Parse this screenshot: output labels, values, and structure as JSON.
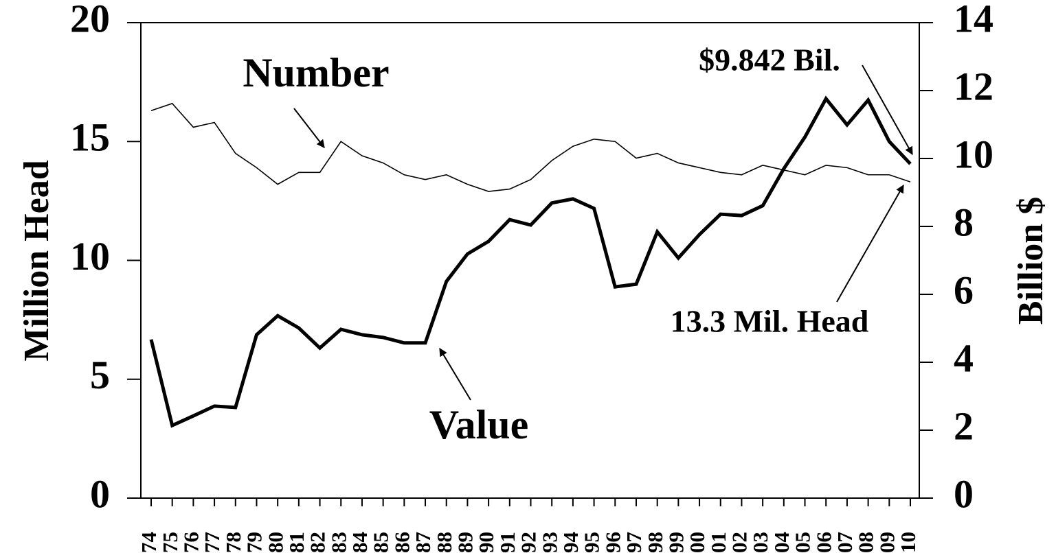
{
  "chart_data": {
    "type": "line",
    "y_label": "Million Head",
    "y2_label": "Billion $",
    "categories": [
      "74",
      "75",
      "76",
      "77",
      "78",
      "79",
      "80",
      "81",
      "82",
      "83",
      "84",
      "85",
      "86",
      "87",
      "88",
      "89",
      "90",
      "91",
      "92",
      "93",
      "94",
      "95",
      "96",
      "97",
      "98",
      "99",
      "00",
      "01",
      "02",
      "03",
      "04",
      "05",
      "06",
      "07",
      "08",
      "09",
      "10"
    ],
    "series": [
      {
        "name": "Number",
        "color": "#000000",
        "axis": "y",
        "values": [
          16.3,
          16.6,
          15.6,
          15.8,
          14.5,
          13.9,
          13.2,
          13.7,
          13.7,
          15.0,
          14.4,
          14.1,
          13.6,
          13.4,
          13.6,
          13.2,
          12.9,
          13.0,
          13.4,
          14.2,
          14.8,
          15.1,
          15.0,
          14.3,
          14.5,
          14.1,
          13.9,
          13.7,
          13.6,
          14.0,
          13.8,
          13.6,
          14.0,
          13.9,
          13.6,
          13.6,
          13.3
        ]
      },
      {
        "name": "Value",
        "color": "#000000",
        "axis": "y2",
        "values": [
          4.67,
          2.14,
          2.42,
          2.71,
          2.67,
          4.81,
          5.37,
          5.01,
          4.42,
          4.97,
          4.81,
          4.73,
          4.57,
          4.57,
          6.38,
          7.19,
          7.56,
          8.2,
          8.04,
          8.69,
          8.81,
          8.53,
          6.22,
          6.3,
          7.84,
          7.07,
          7.76,
          8.36,
          8.32,
          8.61,
          9.7,
          10.63,
          11.76,
          10.99,
          11.72,
          10.5,
          9.842
        ]
      }
    ],
    "ylim": [
      0,
      20
    ],
    "yticks": [
      0,
      5,
      10,
      15,
      20
    ],
    "y2lim": [
      0,
      14
    ],
    "y2ticks": [
      0,
      2,
      4,
      6,
      8,
      10,
      12,
      14
    ],
    "annotations": [
      "$9.842 Bil.",
      "13.3 Mil. Head"
    ]
  }
}
